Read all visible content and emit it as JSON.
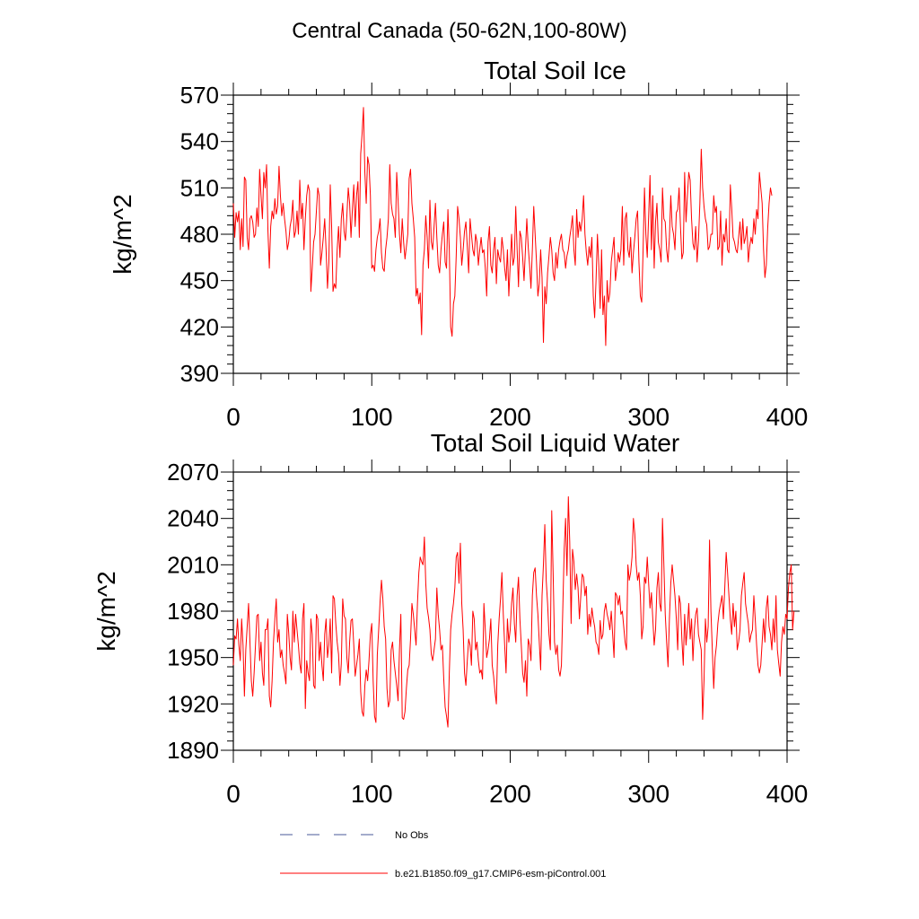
{
  "figure": {
    "suptitle": "Central Canada (50-62N,100-80W)"
  },
  "legend": {
    "entries": [
      {
        "label": "No Obs",
        "color": "#4a5a9a",
        "dash": "dashed"
      },
      {
        "label": "b.e21.B1850.f09_g17.CMIP6-esm-piControl.001",
        "color": "#ff0000",
        "dash": "solid"
      }
    ]
  },
  "chart_data": [
    {
      "type": "line",
      "title": "Total Soil Ice",
      "xlabel": "",
      "ylabel": "kg/m^2",
      "xlim": [
        0,
        400
      ],
      "ylim": [
        390,
        570
      ],
      "xticks": [
        0,
        100,
        200,
        300,
        400
      ],
      "yticks": [
        390,
        420,
        450,
        480,
        510,
        540,
        570
      ],
      "series": [
        {
          "name": "b.e21.B1850.f09_g17.CMIP6-esm-piControl.001",
          "color": "#ff0000",
          "x_start": 0,
          "x_step": 1,
          "values": [
            500,
            478,
            494,
            488,
            495,
            470,
            490,
            472,
            517,
            515,
            478,
            470,
            490,
            492,
            488,
            478,
            480,
            497,
            485,
            522,
            505,
            490,
            520,
            510,
            525,
            482,
            458,
            485,
            495,
            490,
            503,
            493,
            498,
            524,
            505,
            492,
            500,
            490,
            482,
            470,
            475,
            485,
            490,
            502,
            478,
            482,
            495,
            480,
            515,
            490,
            500,
            470,
            490,
            505,
            512,
            508,
            443,
            458,
            475,
            480,
            495,
            510,
            505,
            460,
            468,
            478,
            490,
            470,
            445,
            462,
            512,
            485,
            443,
            448,
            445,
            470,
            485,
            465,
            490,
            500,
            482,
            476,
            492,
            510,
            500,
            478,
            496,
            512,
            485,
            505,
            514,
            478,
            532,
            545,
            562,
            520,
            500,
            530,
            525,
            505,
            458,
            460,
            456,
            470,
            478,
            482,
            490,
            468,
            458,
            456,
            470,
            478,
            490,
            525,
            500,
            493,
            490,
            478,
            520,
            502,
            480,
            468,
            490,
            475,
            464,
            472,
            480,
            516,
            522,
            500,
            490,
            478,
            440,
            445,
            435,
            442,
            415,
            460,
            470,
            492,
            478,
            458,
            502,
            475,
            470,
            485,
            500,
            478,
            460,
            455,
            470,
            480,
            488,
            462,
            458,
            496,
            470,
            420,
            414,
            435,
            440,
            466,
            498,
            490,
            478,
            460,
            470,
            482,
            488,
            472,
            455,
            490,
            480,
            470,
            466,
            480,
            475,
            460,
            470,
            478,
            468,
            470,
            458,
            440,
            475,
            485,
            460,
            455,
            470,
            478,
            448,
            470,
            465,
            462,
            478,
            470,
            458,
            450,
            470,
            440,
            460,
            480,
            460,
            465,
            498,
            470,
            446,
            482,
            478,
            465,
            450,
            470,
            490,
            472,
            460,
            445,
            470,
            498,
            480,
            462,
            440,
            448,
            470,
            452,
            410,
            446,
            435,
            455,
            466,
            478,
            470,
            455,
            450,
            468,
            458,
            470,
            476,
            480,
            470,
            468,
            458,
            466,
            470,
            478,
            484,
            492,
            470,
            460,
            496,
            478,
            488,
            482,
            490,
            505,
            480,
            468,
            460,
            472,
            465,
            478,
            440,
            426,
            450,
            480,
            460,
            432,
            470,
            428,
            440,
            408,
            450,
            436,
            442,
            462,
            470,
            478,
            450,
            458,
            468,
            462,
            470,
            498,
            460,
            490,
            494,
            470,
            465,
            478,
            455,
            468,
            478,
            490,
            495,
            462,
            440,
            436,
            470,
            510,
            480,
            465,
            492,
            518,
            470,
            505,
            458,
            488,
            500,
            475,
            470,
            462,
            510,
            490,
            488,
            470,
            462,
            478,
            505,
            485,
            480,
            470,
            494,
            496,
            510,
            485,
            464,
            468,
            520,
            488,
            505,
            520,
            515,
            490,
            474,
            470,
            485,
            462,
            476,
            500,
            535,
            510,
            498,
            490,
            486,
            470,
            472,
            480,
            480,
            505,
            494,
            498,
            470,
            472,
            495,
            460,
            480,
            475,
            490,
            470,
            468,
            512,
            497,
            478,
            475,
            470,
            468,
            478,
            488,
            470,
            490,
            474,
            478,
            485,
            462,
            472,
            478,
            474,
            490,
            480,
            496,
            490,
            520,
            510,
            500,
            470,
            452,
            460,
            484,
            500,
            510,
            505
          ]
        }
      ]
    },
    {
      "type": "line",
      "title": "Total Soil Liquid Water",
      "xlabel": "",
      "ylabel": "kg/m^2",
      "xlim": [
        0,
        400
      ],
      "ylim": [
        1890,
        2070
      ],
      "xticks": [
        0,
        100,
        200,
        300,
        400
      ],
      "yticks": [
        1890,
        1920,
        1950,
        1980,
        2010,
        2040,
        2070
      ],
      "series": [
        {
          "name": "b.e21.B1850.f09_g17.CMIP6-esm-piControl.001",
          "color": "#ff0000",
          "x_start": 0,
          "x_step": 1,
          "values": [
            1945,
            1964,
            1962,
            1975,
            1958,
            1948,
            1975,
            1958,
            1925,
            1955,
            1970,
            1985,
            1960,
            1935,
            1925,
            1940,
            1958,
            1977,
            1978,
            1948,
            1960,
            1940,
            1932,
            1968,
            1968,
            1975,
            1925,
            1918,
            1935,
            1960,
            1975,
            1988,
            1960,
            1968,
            1950,
            1955,
            1945,
            1940,
            1933,
            1978,
            1966,
            1950,
            1942,
            1980,
            1960,
            1978,
            1968,
            1958,
            1946,
            1940,
            1975,
            1985,
            1917,
            1948,
            1940,
            1935,
            1975,
            1965,
            1932,
            1930,
            1978,
            1975,
            1948,
            1960,
            1945,
            1935,
            1965,
            1975,
            1950,
            1958,
            1975,
            1940,
            1990,
            1988,
            1972,
            1960,
            1952,
            1932,
            1946,
            1988,
            1977,
            1975,
            1950,
            1940,
            1960,
            1974,
            1975,
            1958,
            1938,
            1945,
            1952,
            1962,
            1928,
            1915,
            1912,
            1932,
            1942,
            1935,
            1948,
            1965,
            1972,
            1935,
            1912,
            1908,
            1952,
            1968,
            1986,
            2000,
            1988,
            1970,
            1962,
            1930,
            1918,
            1922,
            1955,
            1960,
            1948,
            1940,
            1932,
            1922,
            1955,
            1978,
            1911,
            1910,
            1915,
            1930,
            1942,
            1945,
            1962,
            1985,
            1978,
            1968,
            1958,
            1985,
            2005,
            2015,
            2012,
            2010,
            2028,
            1998,
            1982,
            1976,
            1968,
            1952,
            1948,
            1955,
            1962,
            1995,
            1978,
            1968,
            1955,
            1958,
            1936,
            1918,
            1912,
            1905,
            1940,
            1968,
            1978,
            1985,
            1995,
            2015,
            2018,
            1998,
            2024,
            1985,
            1968,
            1940,
            1932,
            1948,
            1962,
            1958,
            1945,
            1980,
            1975,
            1955,
            1960,
            1948,
            1940,
            1942,
            1936,
            1985,
            1968,
            1950,
            1955,
            1962,
            1975,
            1945,
            1938,
            1928,
            1920,
            1958,
            1975,
            1988,
            2005,
            1978,
            1958,
            1940,
            1975,
            1960,
            1968,
            1985,
            1995,
            1972,
            1960,
            1990,
            2002,
            1975,
            1958,
            1940,
            1934,
            1948,
            1925,
            1962,
            1958,
            1948,
            1990,
            2005,
            2008,
            1990,
            1978,
            1960,
            1942,
            1990,
            2010,
            2036,
            2000,
            1985,
            1965,
            1955,
            2045,
            2005,
            1960,
            1952,
            1958,
            1942,
            1938,
            1945,
            1982,
            2020,
            2040,
            2003,
            2054,
            2025,
            1972,
            2020,
            2012,
            1994,
            2004,
            1995,
            1975,
            1990,
            2004,
            2002,
            1990,
            1996,
            1965,
            1978,
            1970,
            1982,
            1975,
            1970,
            1960,
            1958,
            1952,
            1974,
            1962,
            1965,
            1980,
            1985,
            1978,
            1974,
            1968,
            1980,
            1965,
            1950,
            1992,
            1990,
            1984,
            1990,
            1978,
            1980,
            1970,
            1960,
            1955,
            2010,
            2000,
            2005,
            2015,
            2040,
            2030,
            2010,
            2000,
            2005,
            1990,
            1962,
            1970,
            2002,
            1998,
            2015,
            1998,
            1982,
            1992,
            1975,
            1958,
            1968,
            1995,
            2005,
            1985,
            1980,
            2040,
            2010,
            1978,
            1960,
            1944,
            1975,
            1998,
            2010,
            2000,
            1990,
            1975,
            1955,
            1990,
            1985,
            1962,
            1945,
            1978,
            1958,
            1970,
            1985,
            1962,
            1975,
            1948,
            1968,
            1978,
            1982,
            1965,
            1960,
            1955,
            1910,
            1935,
            1975,
            1960,
            1970,
            2026,
            1980,
            1955,
            1930,
            1950,
            1958,
            1972,
            1980,
            1985,
            1990,
            1975,
            1995,
            2018,
            2005,
            1990,
            1975,
            1965,
            1985,
            1970,
            1980,
            1955,
            1960,
            1968,
            1990,
            1998,
            2005,
            1985,
            1978,
            1972,
            1960,
            1965,
            1968,
            1990,
            1975,
            1958,
            1945,
            1940,
            1945,
            1960,
            1975,
            1960,
            1982,
            1990,
            1970,
            1965,
            1955,
            1975,
            1960,
            1990,
            1955,
            1946,
            1938,
            1960,
            1970,
            1965,
            1978,
            1975,
            1995,
            2005,
            2010,
            1968,
            1980
          ]
        }
      ]
    }
  ]
}
